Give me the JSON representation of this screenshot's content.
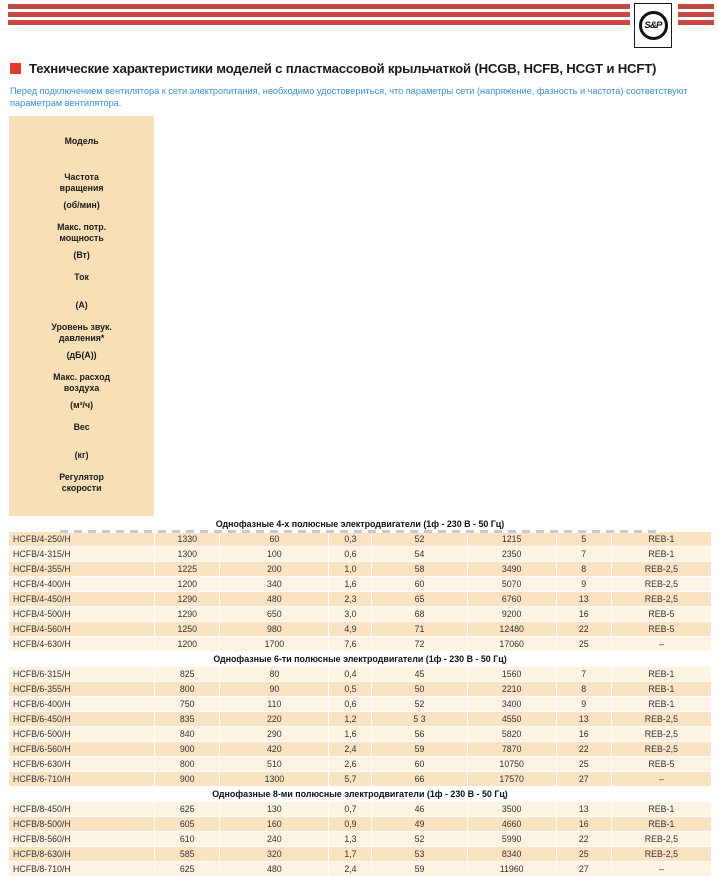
{
  "brand": {
    "logo_text": "S&P"
  },
  "title": {
    "text": "Технические характеристики моделей с пластмассовой крыльчаткой (HCGB, HCFB, HCGT и HCFT)"
  },
  "intro": {
    "text": "Перед подключением вентилятора к сети электропитания, необходимо удостовериться, что параметры сети (напряжение, фазность и частота) соответствуют параметрам вентилятора."
  },
  "colors": {
    "stripe_red": "#c54842",
    "bullet_red": "#e23b2c",
    "intro_blue": "#3d8fd3",
    "header_bg": "#f8dfb6",
    "row_peach": "#fae3c3",
    "row_light": "#fdf3e2"
  },
  "table": {
    "columns": [
      {
        "id": "model",
        "name_lines": [
          "Модель"
        ],
        "unit": "",
        "valign": "center"
      },
      {
        "id": "rpm",
        "name_lines": [
          "Частота",
          "вращения"
        ],
        "unit": "(об/мин)"
      },
      {
        "id": "power",
        "name_lines": [
          "Макс. потр.",
          "мощность"
        ],
        "unit": "(Вт)"
      },
      {
        "id": "current",
        "name_lines": [
          "Ток"
        ],
        "unit": "(А)"
      },
      {
        "id": "noise",
        "name_lines": [
          "Уровень звук.",
          "давления*"
        ],
        "unit": "(дБ(А))"
      },
      {
        "id": "airflow",
        "name_lines": [
          "Макс. расход",
          "воздуха"
        ],
        "unit": "(м³/ч)"
      },
      {
        "id": "weight",
        "name_lines": [
          "Вес"
        ],
        "unit": "(кг)"
      },
      {
        "id": "regulator",
        "name_lines": [
          "Регулятор",
          "скорости"
        ],
        "unit": ""
      }
    ],
    "sections": [
      {
        "heading": "Однофазные 4-х полюсные электродвигатели (1ф - 230 В - 50 Гц)",
        "zebra_start": "peach",
        "rows": [
          [
            "HCFB/4-250/H",
            "1330",
            "60",
            "0,3",
            "52",
            "1215",
            "5",
            "REB-1"
          ],
          [
            "HCFB/4-315/H",
            "1300",
            "100",
            "0,6",
            "54",
            "2350",
            "7",
            "REB-1"
          ],
          [
            "HCFB/4-355/H",
            "1225",
            "200",
            "1,0",
            "58",
            "3490",
            "8",
            "REB-2,5"
          ],
          [
            "HCFB/4-400/H",
            "1200",
            "340",
            "1,6",
            "60",
            "5070",
            "9",
            "REB-2,5"
          ],
          [
            "HCFB/4-450/H",
            "1290",
            "480",
            "2,3",
            "65",
            "6760",
            "13",
            "REB-2,5"
          ],
          [
            "HCFB/4-500/H",
            "1290",
            "650",
            "3,0",
            "68",
            "9200",
            "16",
            "REB-5"
          ],
          [
            "HCFB/4-560/H",
            "1250",
            "980",
            "4,9",
            "71",
            "12480",
            "22",
            "REB-5"
          ],
          [
            "HCFB/4-630/H",
            "1200",
            "1700",
            "7,6",
            "72",
            "17060",
            "25",
            "–"
          ]
        ]
      },
      {
        "heading": "Однофазные 6-ти полюсные электродвигатели (1ф - 230 В - 50 Гц)",
        "zebra_start": "light",
        "rows": [
          [
            "HCFB/6-315/H",
            "825",
            "80",
            "0,4",
            "45",
            "1560",
            "7",
            "REB-1"
          ],
          [
            "HCFB/6-355/H",
            "800",
            "90",
            "0,5",
            "50",
            "2210",
            "8",
            "REB-1"
          ],
          [
            "HCFB/6-400/H",
            "750",
            "110",
            "0,6",
            "52",
            "3400",
            "9",
            "REB-1"
          ],
          [
            "HCFB/6-450/H",
            "835",
            "220",
            "1,2",
            "5 3",
            "4550",
            "13",
            "REB-2,5"
          ],
          [
            "HCFB/6-500/H",
            "840",
            "290",
            "1,6",
            "56",
            "5820",
            "16",
            "REB-2,5"
          ],
          [
            "HCFB/6-560/H",
            "900",
            "420",
            "2,4",
            "59",
            "7870",
            "22",
            "REB-2,5"
          ],
          [
            "HCFB/6-630/H",
            "800",
            "510",
            "2,6",
            "60",
            "10750",
            "25",
            "REB-5"
          ],
          [
            "HCFB/6-710/H",
            "900",
            "1300",
            "5,7",
            "66",
            "17570",
            "27",
            "–"
          ]
        ]
      },
      {
        "heading": "Однофазные 8-ми полюсные электродвигатели (1ф - 230 В - 50 Гц)",
        "zebra_start": "light",
        "rows": [
          [
            "HCFB/8-450/H",
            "625",
            "130",
            "0,7",
            "46",
            "3500",
            "13",
            "REB-1"
          ],
          [
            "HCFB/8-500/H",
            "605",
            "160",
            "0,9",
            "49",
            "4660",
            "16",
            "REB-1"
          ],
          [
            "HCFB/8-560/H",
            "610",
            "240",
            "1,3",
            "52",
            "5990",
            "22",
            "REB-2,5"
          ],
          [
            "HCFB/8-630/H",
            "585",
            "320",
            "1,7",
            "53",
            "8340",
            "25",
            "REB-2,5"
          ],
          [
            "HCFB/8-710/H",
            "625",
            "480",
            "2,4",
            "59",
            "11960",
            "27",
            "–"
          ]
        ]
      }
    ]
  }
}
